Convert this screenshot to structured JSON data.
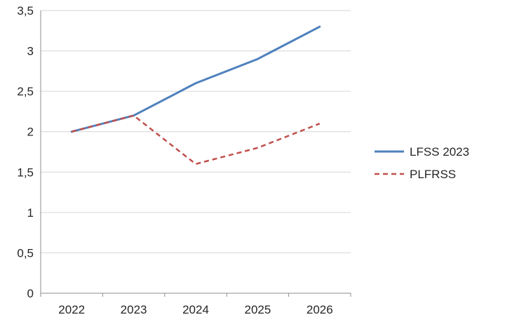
{
  "chart_data": {
    "type": "line",
    "title": "",
    "xlabel": "",
    "ylabel": "",
    "x": [
      2022,
      2023,
      2024,
      2025,
      2026
    ],
    "xtick_labels": [
      "2022",
      "2023",
      "2024",
      "2025",
      "2026"
    ],
    "series": [
      {
        "name": "LFSS 2023",
        "values": [
          2.0,
          2.2,
          2.6,
          2.9,
          3.3
        ],
        "color": "#4F81BD",
        "dash": "solid",
        "width": 3
      },
      {
        "name": "PLFRSS",
        "values": [
          2.0,
          2.2,
          1.6,
          1.8,
          2.1
        ],
        "color": "#C0504D",
        "dash": "dashed",
        "width": 2.5
      }
    ],
    "ylim": [
      0,
      3.5
    ],
    "ytick_step": 0.5,
    "ytick_labels": [
      "0",
      "0,5",
      "1",
      "1,5",
      "2",
      "2,5",
      "3",
      "3,5"
    ],
    "grid": true,
    "legend_position": "right",
    "colors": {
      "gridline": "#D6D6D6",
      "axis": "#8C8C8C",
      "tick": "#8C8C8C",
      "text": "#262626",
      "background": "#FFFFFF"
    }
  },
  "legend": {
    "items": [
      {
        "label": "LFSS 2023"
      },
      {
        "label": "PLFRSS"
      }
    ]
  }
}
